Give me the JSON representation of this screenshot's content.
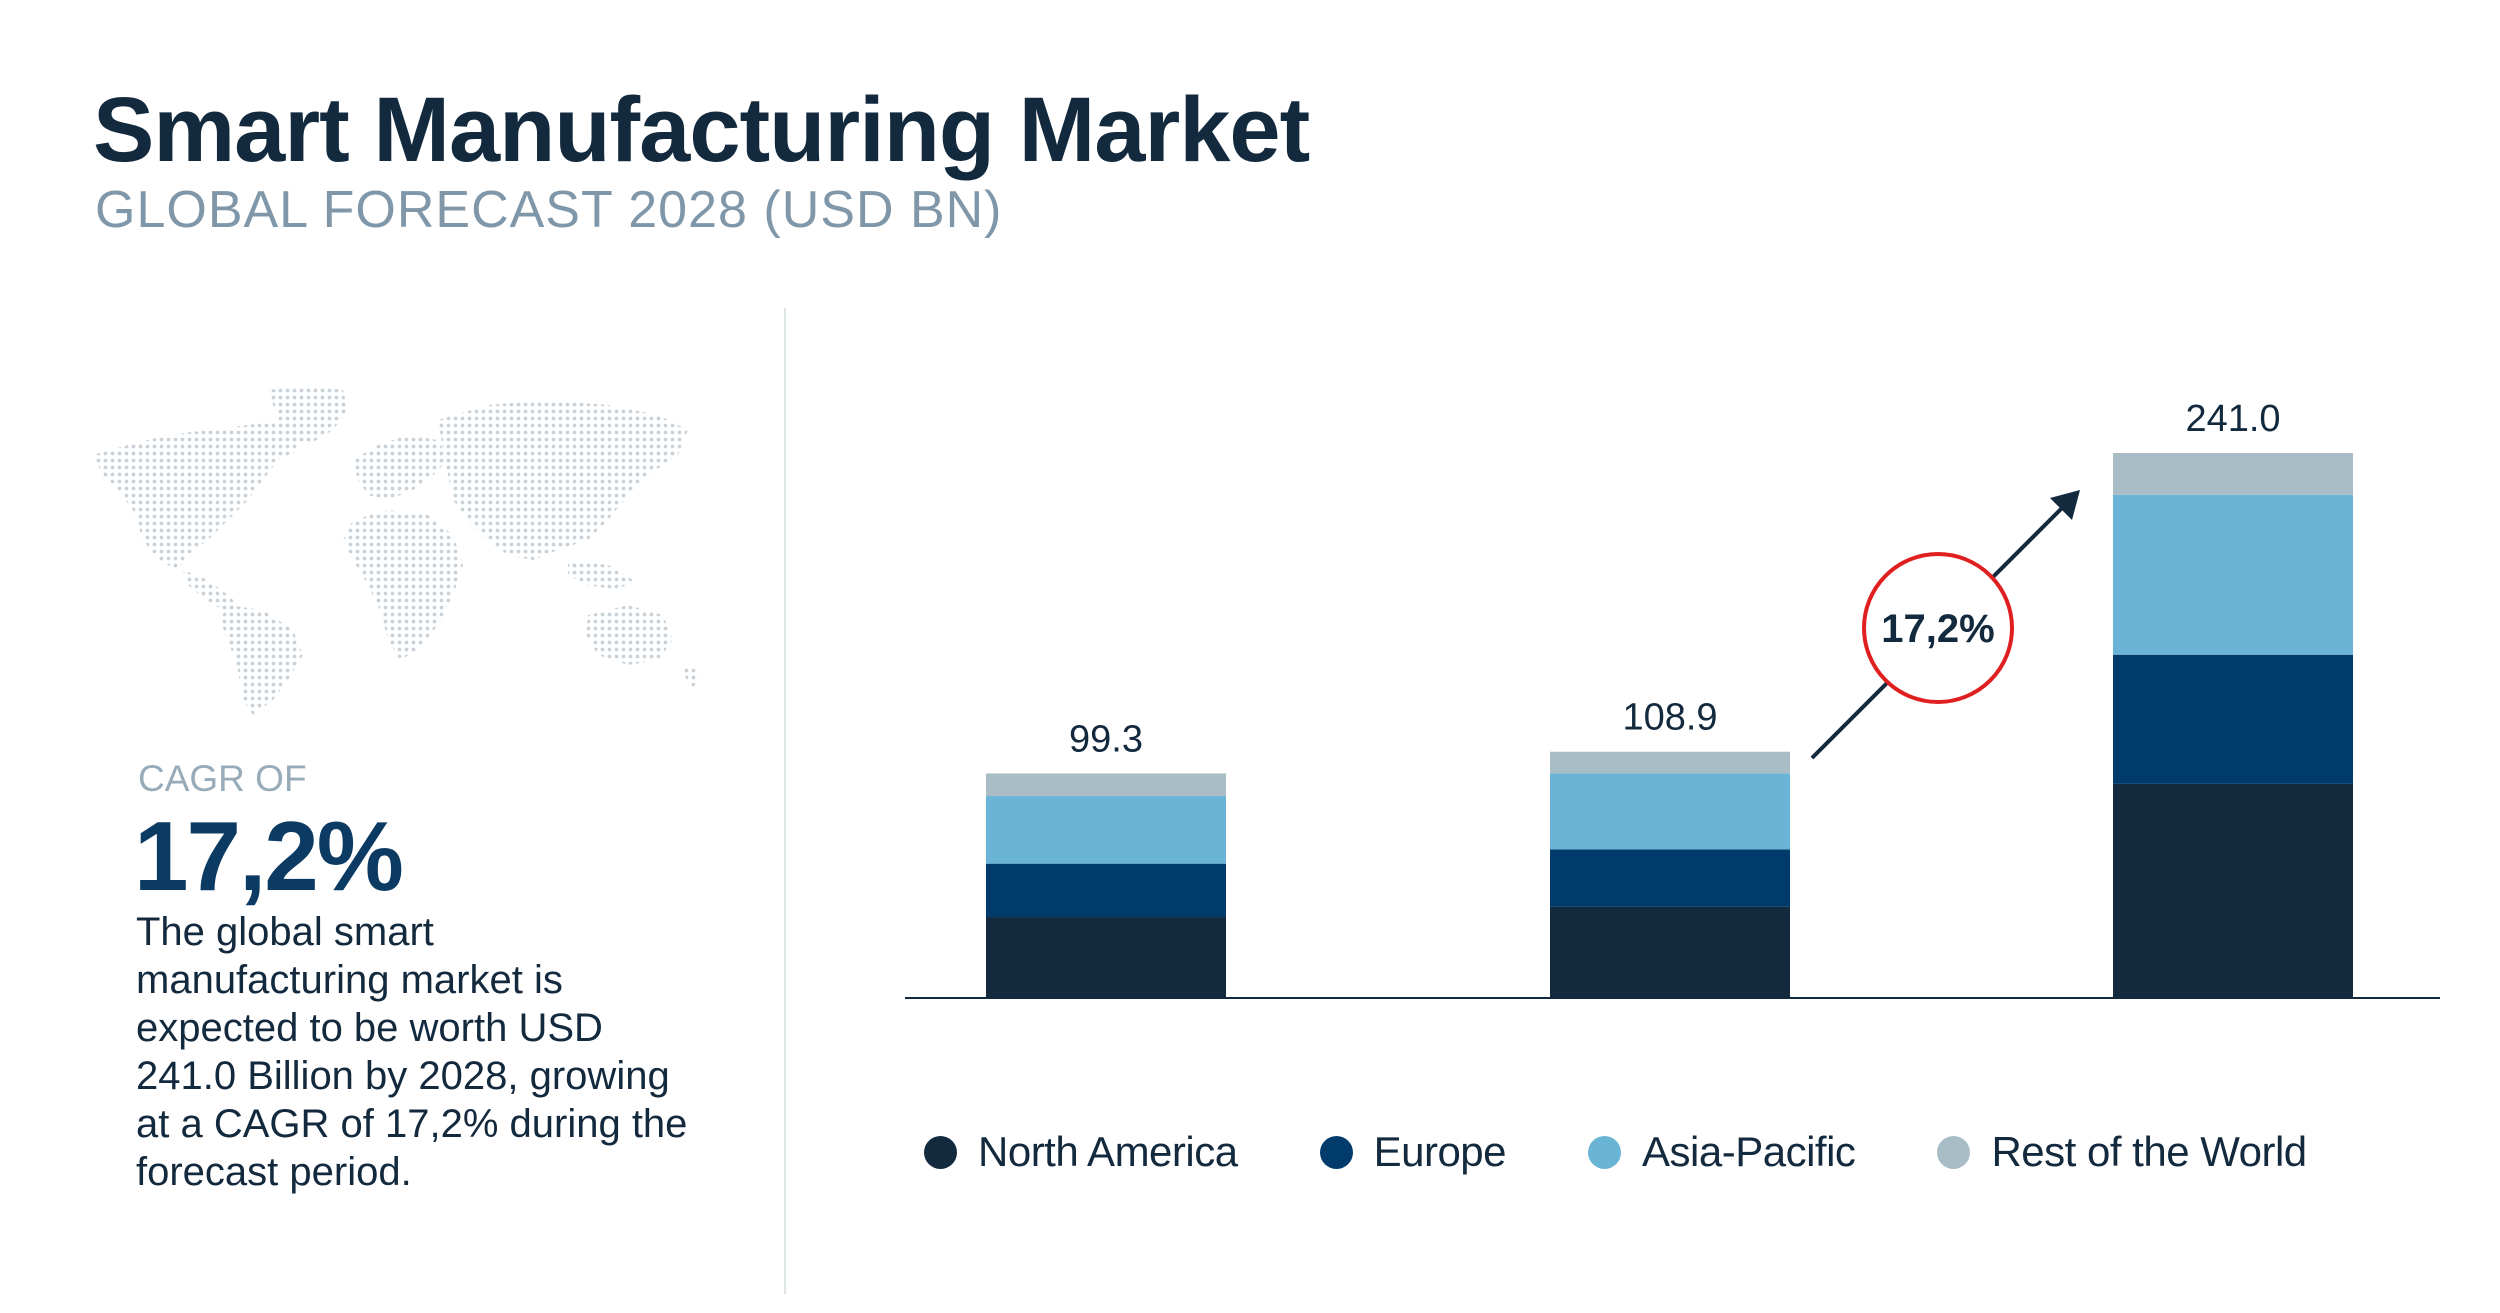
{
  "header": {
    "title": "Smart Manufacturing Market",
    "subtitle": "GLOBAL FORECAST 2028 (USD BN)"
  },
  "sidebar": {
    "cagr_label": "CAGR OF",
    "cagr_value": "17,2%",
    "description": "The global smart manufacturing market is expected to be worth USD 241.0 Billion by 2028, growing at a CAGR of 17,2% during the forecast period."
  },
  "chart_data": {
    "type": "bar",
    "stacked": true,
    "categories": [
      "",
      "",
      ""
    ],
    "totals": [
      99.3,
      108.9,
      241.0
    ],
    "total_labels": [
      "99.3",
      "108.9",
      "241.0"
    ],
    "series": [
      {
        "name": "North America",
        "color": "#13293d",
        "values": [
          35.8,
          40.3,
          94.7
        ]
      },
      {
        "name": "Europe",
        "color": "#003b6b",
        "values": [
          23.6,
          25.4,
          57.1
        ]
      },
      {
        "name": "Asia-Pacific",
        "color": "#6ab5d6",
        "values": [
          29.9,
          33.7,
          70.7
        ]
      },
      {
        "name": "Rest of the World",
        "color": "#a9bdc6",
        "values": [
          10.0,
          9.5,
          18.5
        ]
      }
    ],
    "growth_badge": {
      "label": "17,2%",
      "color": "#e02020"
    },
    "ylim": [
      0,
      241.0
    ],
    "grid": false,
    "legend_position": "bottom",
    "xlabel": "",
    "ylabel": ""
  },
  "colors": {
    "navy": "#13293d",
    "accent": "#0b3a63",
    "muted": "#7f97a8",
    "map_dot": "#c9d2d8"
  }
}
